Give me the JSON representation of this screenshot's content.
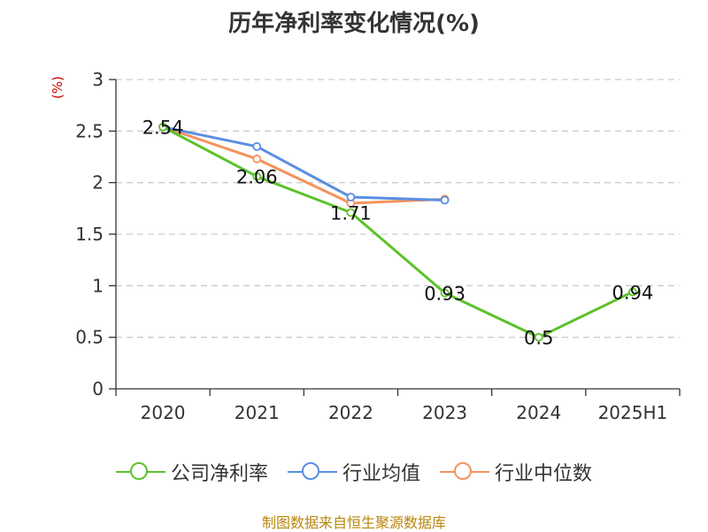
{
  "title": "历年净利率变化情况(%)",
  "unit_label": "(%)",
  "source_text": "制图数据来自恒生聚源数据库",
  "colors": {
    "company": "#5cc22a",
    "industry_avg": "#5b8ee0",
    "industry_median": "#f4935e",
    "grid": "#cccccc",
    "axis": "#333333"
  },
  "chart_data": {
    "type": "line",
    "title": "历年净利率变化情况(%)",
    "ylabel": "(%)",
    "categories": [
      "2020",
      "2021",
      "2022",
      "2023",
      "2024",
      "2025H1"
    ],
    "ylim": [
      0,
      3
    ],
    "yticks": [
      "0",
      "0.5",
      "1",
      "1.5",
      "2",
      "2.5",
      "3"
    ],
    "grid": true,
    "legend_position": "bottom",
    "series": [
      {
        "name": "公司净利率",
        "values": [
          2.54,
          2.06,
          1.71,
          0.93,
          0.5,
          0.94
        ],
        "labels": [
          "2.54",
          "2.06",
          "1.71",
          "0.93",
          "0.5",
          "0.94"
        ]
      },
      {
        "name": "行业均值",
        "values": [
          2.54,
          2.35,
          1.86,
          1.83,
          null,
          null
        ]
      },
      {
        "name": "行业中位数",
        "values": [
          2.54,
          2.23,
          1.8,
          1.84,
          null,
          null
        ]
      }
    ]
  }
}
